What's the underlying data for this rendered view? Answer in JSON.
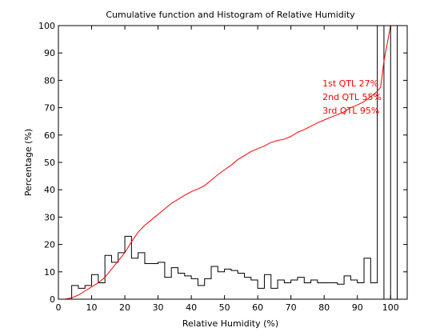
{
  "chart_data": {
    "type": "line",
    "title": "Cumulative function and Histogram of Relative Humidity",
    "xlabel": "Relative Humidity (%)",
    "ylabel": "Percentage (%)",
    "xlim": [
      0,
      105
    ],
    "ylim": [
      0,
      100
    ],
    "xticks": [
      0,
      10,
      20,
      30,
      40,
      50,
      60,
      70,
      80,
      90,
      100
    ],
    "yticks": [
      0,
      10,
      20,
      30,
      40,
      50,
      60,
      70,
      80,
      90,
      100
    ],
    "grid": false,
    "series": [
      {
        "kind": "histogram-step",
        "color": "#000000",
        "x": [
          0,
          2,
          4,
          6,
          8,
          10,
          12,
          14,
          16,
          18,
          20,
          22,
          24,
          26,
          28,
          30,
          32,
          34,
          36,
          38,
          40,
          42,
          44,
          46,
          48,
          50,
          52,
          54,
          56,
          58,
          60,
          62,
          64,
          66,
          68,
          70,
          72,
          74,
          76,
          78,
          80,
          82,
          84,
          86,
          88,
          90,
          92,
          94,
          96,
          98,
          100,
          102,
          104
        ],
        "y": [
          0,
          0,
          5,
          4,
          5,
          9,
          6,
          16,
          13.5,
          17,
          23,
          15,
          17,
          13,
          13,
          13.5,
          8,
          11.5,
          9.5,
          8.5,
          7.5,
          5,
          7.5,
          12,
          10,
          11,
          10.5,
          9.5,
          8,
          7,
          4,
          9,
          4,
          7,
          6,
          7,
          8,
          6,
          7,
          6,
          6,
          6,
          5.5,
          8.5,
          7,
          6,
          15,
          6,
          100,
          0,
          100,
          0
        ]
      },
      {
        "kind": "cumulative",
        "color": "#ff0000",
        "x": [
          0,
          2,
          4,
          6,
          8,
          10,
          12,
          14,
          16,
          18,
          20,
          22,
          24,
          26,
          28,
          30,
          32,
          34,
          36,
          38,
          40,
          42,
          44,
          46,
          48,
          50,
          52,
          54,
          56,
          58,
          60,
          62,
          64,
          66,
          68,
          70,
          72,
          74,
          76,
          78,
          80,
          82,
          84,
          86,
          88,
          90,
          92,
          94,
          96,
          97,
          98,
          100,
          104
        ],
        "y": [
          0,
          0,
          0.5,
          1.5,
          3,
          4.5,
          6,
          8,
          11,
          14,
          17,
          21,
          24.5,
          27,
          29,
          31,
          33,
          35,
          36.5,
          38,
          39.3,
          40.3,
          41.5,
          43.5,
          45.5,
          47.3,
          49,
          51,
          52.5,
          54,
          55,
          56,
          57.3,
          58,
          58.5,
          59.5,
          61,
          62,
          63.2,
          64.5,
          65.5,
          66.5,
          67.5,
          68.5,
          70,
          71,
          72.2,
          74,
          76,
          77.5,
          87,
          100,
          100
        ]
      }
    ],
    "annotations": [
      {
        "text": "1st QTL  27%",
        "x": 79.5,
        "y": 79,
        "color": "#ff0000"
      },
      {
        "text": "2nd QTL  55%",
        "x": 79.5,
        "y": 74,
        "color": "#ff0000"
      },
      {
        "text": "3rd QTL  95%",
        "x": 79.5,
        "y": 69,
        "color": "#ff0000"
      }
    ]
  }
}
